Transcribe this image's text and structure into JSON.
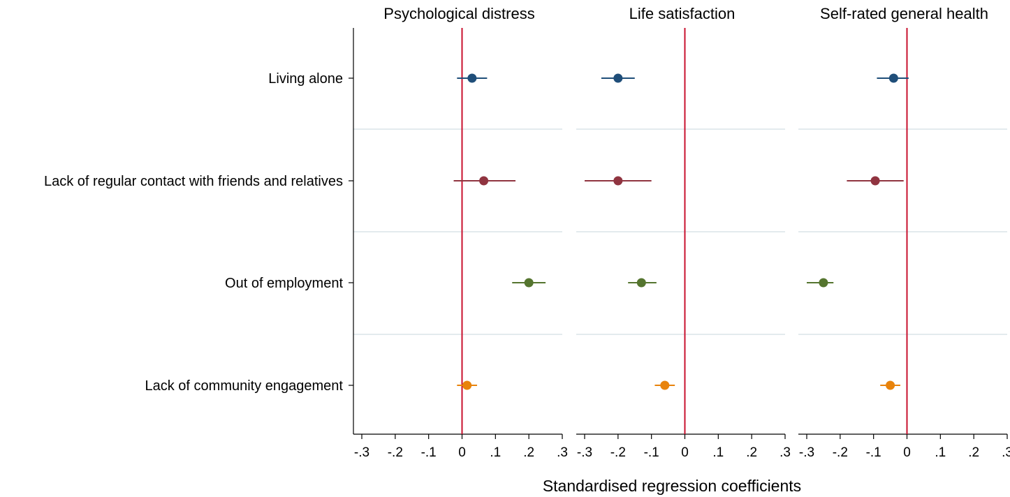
{
  "chart_data": {
    "type": "scatter",
    "subtype": "coefficient-plot-with-confidence-intervals",
    "xlabel": "Standardised regression coefficients",
    "xlim": [
      -0.3,
      0.3
    ],
    "xticks": [
      -0.3,
      -0.2,
      -0.1,
      0,
      0.1,
      0.2,
      0.3
    ],
    "xtick_labels": [
      "-.3",
      "-.2",
      "-.1",
      "0",
      ".1",
      ".2",
      ".3"
    ],
    "reference_line": {
      "x": 0,
      "color": "#c8102e"
    },
    "gridlines": "horizontal separators between categories",
    "legend": "none",
    "categories": [
      "Living alone",
      "Lack of regular contact with friends and relatives",
      "Out of employment",
      "Lack of community engagement"
    ],
    "category_colors": [
      "#1f4e79",
      "#903440",
      "#55752f",
      "#e8830c"
    ],
    "panels": [
      {
        "title": "Psychological distress",
        "estimates": [
          0.03,
          0.065,
          0.2,
          0.015
        ],
        "ci_low": [
          -0.015,
          -0.025,
          0.15,
          -0.015
        ],
        "ci_high": [
          0.075,
          0.16,
          0.25,
          0.045
        ]
      },
      {
        "title": "Life satisfaction",
        "estimates": [
          -0.2,
          -0.2,
          -0.13,
          -0.06
        ],
        "ci_low": [
          -0.25,
          -0.3,
          -0.17,
          -0.09
        ],
        "ci_high": [
          -0.15,
          -0.1,
          -0.085,
          -0.03
        ]
      },
      {
        "title": "Self-rated general health",
        "estimates": [
          -0.04,
          -0.095,
          -0.25,
          -0.05
        ],
        "ci_low": [
          -0.09,
          -0.18,
          -0.3,
          -0.08
        ],
        "ci_high": [
          0.005,
          -0.01,
          -0.22,
          -0.02
        ]
      }
    ]
  }
}
